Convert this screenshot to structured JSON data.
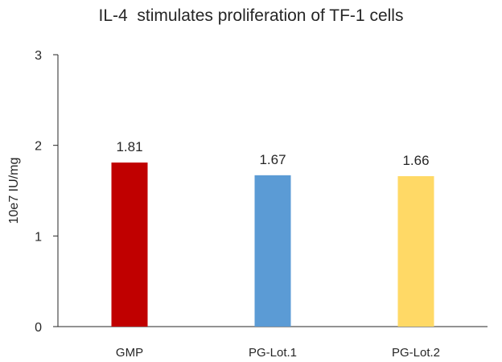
{
  "chart_data": {
    "type": "bar",
    "title": "IL-4  stimulates proliferation of TF-1 cells",
    "xlabel": "",
    "ylabel": "10e7 IU/mg",
    "categories": [
      "GMP",
      "PG-Lot.1",
      "PG-Lot.2"
    ],
    "values": [
      1.81,
      1.67,
      1.66
    ],
    "value_labels": [
      "1.81",
      "1.67",
      "1.66"
    ],
    "colors": [
      "#C00000",
      "#5B9BD5",
      "#FFD966"
    ],
    "ylim": [
      0,
      3
    ],
    "yticks": [
      "0",
      "1",
      "2",
      "3"
    ],
    "grid": false,
    "legend": "none"
  }
}
